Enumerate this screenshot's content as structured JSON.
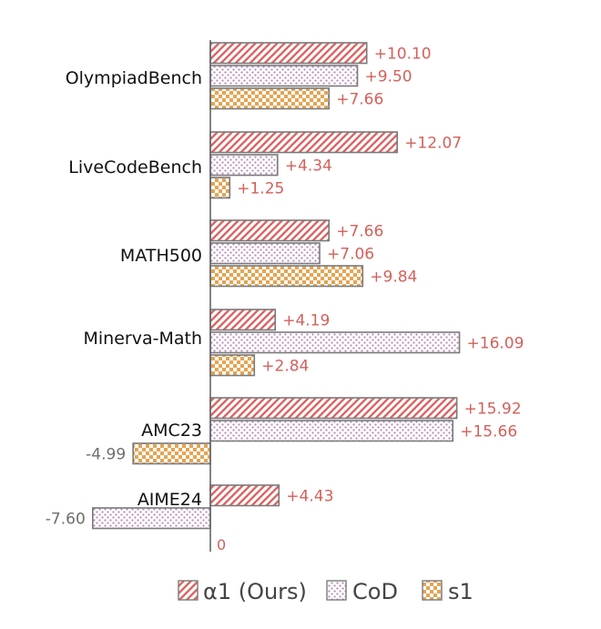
{
  "chart_data": {
    "type": "bar",
    "orientation": "horizontal",
    "categories": [
      "OlympiadBench",
      "LiveCodeBench",
      "MATH500",
      "Minerva-Math",
      "AMC23",
      "AIME24"
    ],
    "series": [
      {
        "name": "α1 (Ours)",
        "key": "alpha1",
        "pattern": "hatch",
        "color": "#d9615f",
        "values": [
          10.1,
          12.07,
          7.66,
          4.19,
          15.92,
          4.43
        ],
        "labels": [
          "+10.10",
          "+12.07",
          "+7.66",
          "+4.19",
          "+15.92",
          "+4.43"
        ]
      },
      {
        "name": "CoD",
        "key": "cod",
        "pattern": "dots",
        "color": "#c8a8c8",
        "values": [
          9.5,
          4.34,
          7.06,
          16.09,
          15.66,
          -7.6
        ],
        "labels": [
          "+9.50",
          "+4.34",
          "+7.06",
          "+16.09",
          "+15.66",
          "-7.60"
        ]
      },
      {
        "name": "s1",
        "key": "s1",
        "pattern": "checker",
        "color": "#e8a856",
        "values": [
          7.66,
          1.25,
          9.84,
          2.84,
          -4.99,
          null
        ],
        "labels": [
          "+7.66",
          "+1.25",
          "+9.84",
          "+2.84",
          "-4.99",
          null
        ]
      }
    ],
    "zero_label": "0",
    "xlim": [
      -8.0,
      17.5
    ],
    "grid": false,
    "legend_position": "bottom",
    "colors": {
      "label_positive": "#d4605a",
      "label_negative": "#6e6e6e",
      "axis": "#666666",
      "bar_stroke": "#7a7a7a"
    }
  }
}
